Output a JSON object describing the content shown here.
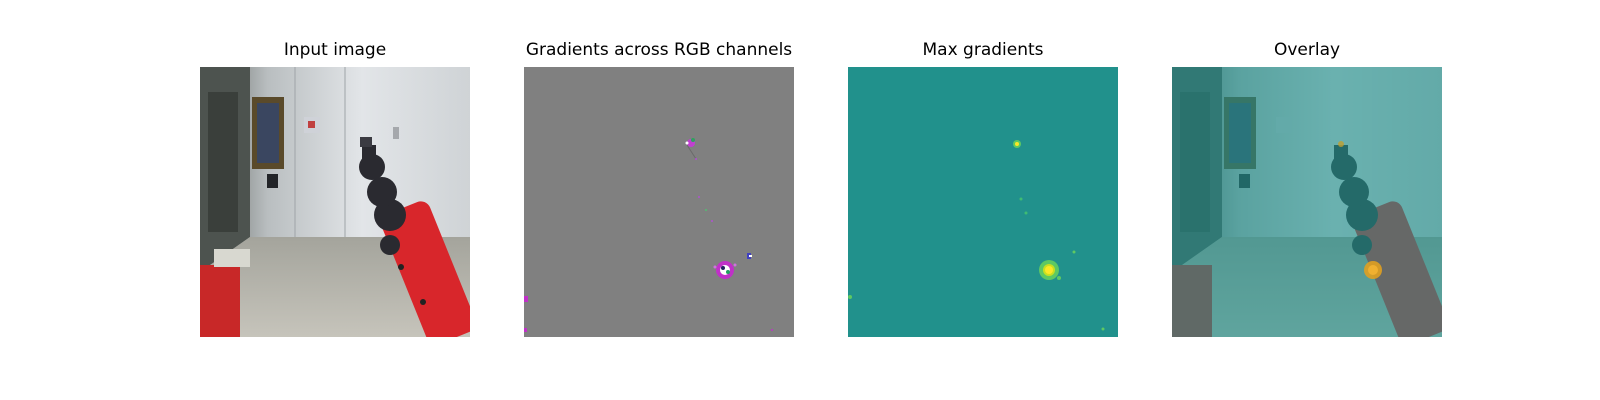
{
  "panels": [
    {
      "title": "Input image"
    },
    {
      "title": "Gradients across RGB channels"
    },
    {
      "title": "Max gradients"
    },
    {
      "title": "Overlay"
    }
  ],
  "colors": {
    "background": "#ffffff",
    "gradient_gray": "#808080",
    "viridis_teal": "#21918c",
    "viridis_yellow": "#fde725",
    "viridis_green": "#5ec962",
    "robot_red": "#d8262b",
    "robot_dark": "#2a2a30"
  },
  "icons": [
    "input-image",
    "rgb-gradient-map",
    "max-gradient-heatmap",
    "overlay-image"
  ]
}
